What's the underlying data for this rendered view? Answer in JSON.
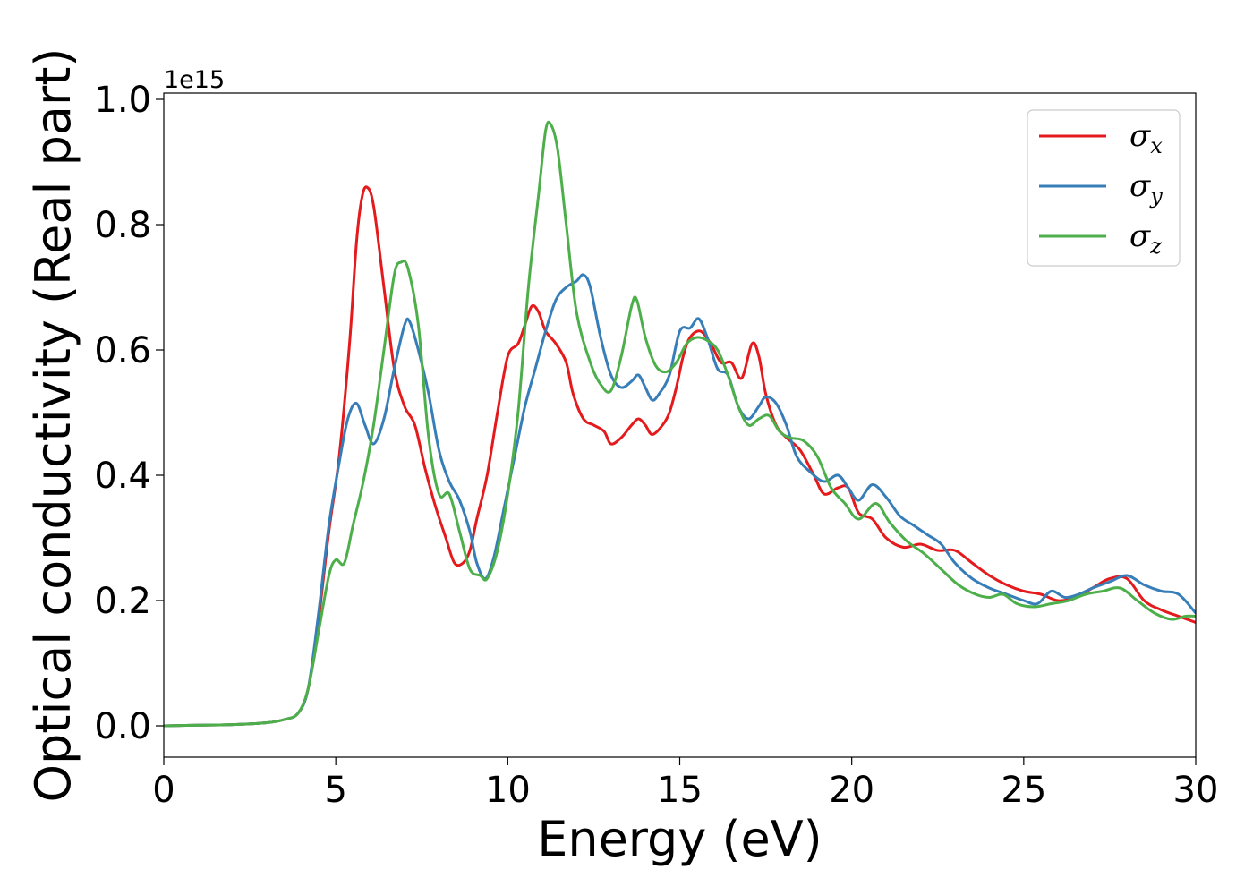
{
  "chart_data": {
    "type": "line",
    "title": "",
    "xlabel": "Energy (eV)",
    "ylabel": "Optical conductivity (Real part)",
    "y_offset_label": "1e15",
    "xlim": [
      0,
      30
    ],
    "ylim": [
      -0.05,
      1.01
    ],
    "x_ticks": [
      0,
      5,
      10,
      15,
      20,
      25,
      30
    ],
    "x_tick_labels": [
      "0",
      "5",
      "10",
      "15",
      "20",
      "25",
      "30"
    ],
    "y_ticks": [
      0.0,
      0.2,
      0.4,
      0.6,
      0.8,
      1.0
    ],
    "y_tick_labels": [
      "0.0",
      "0.2",
      "0.4",
      "0.6",
      "0.8",
      "1.0"
    ],
    "grid": false,
    "legend_position": "top-right",
    "series": [
      {
        "name": "σx",
        "legend_symbol": "σ",
        "legend_subscript": "x",
        "color": "#e41a1c",
        "points": [
          [
            0,
            0.0
          ],
          [
            1,
            0.001
          ],
          [
            2,
            0.002
          ],
          [
            3,
            0.005
          ],
          [
            3.5,
            0.01
          ],
          [
            3.9,
            0.02
          ],
          [
            4.2,
            0.06
          ],
          [
            4.5,
            0.17
          ],
          [
            4.8,
            0.31
          ],
          [
            5.1,
            0.43
          ],
          [
            5.4,
            0.61
          ],
          [
            5.6,
            0.77
          ],
          [
            5.75,
            0.84
          ],
          [
            5.9,
            0.86
          ],
          [
            6.1,
            0.83
          ],
          [
            6.4,
            0.7
          ],
          [
            6.7,
            0.57
          ],
          [
            7.0,
            0.51
          ],
          [
            7.3,
            0.48
          ],
          [
            7.6,
            0.41
          ],
          [
            7.9,
            0.35
          ],
          [
            8.2,
            0.3
          ],
          [
            8.45,
            0.26
          ],
          [
            8.7,
            0.26
          ],
          [
            8.9,
            0.28
          ],
          [
            9.1,
            0.33
          ],
          [
            9.4,
            0.4
          ],
          [
            9.7,
            0.5
          ],
          [
            10.0,
            0.59
          ],
          [
            10.3,
            0.61
          ],
          [
            10.5,
            0.64
          ],
          [
            10.7,
            0.67
          ],
          [
            10.9,
            0.66
          ],
          [
            11.1,
            0.63
          ],
          [
            11.4,
            0.61
          ],
          [
            11.7,
            0.58
          ],
          [
            11.9,
            0.53
          ],
          [
            12.2,
            0.49
          ],
          [
            12.5,
            0.48
          ],
          [
            12.8,
            0.47
          ],
          [
            13.0,
            0.45
          ],
          [
            13.3,
            0.46
          ],
          [
            13.6,
            0.48
          ],
          [
            13.8,
            0.49
          ],
          [
            14.0,
            0.48
          ],
          [
            14.2,
            0.465
          ],
          [
            14.5,
            0.48
          ],
          [
            14.7,
            0.5
          ],
          [
            14.9,
            0.54
          ],
          [
            15.1,
            0.59
          ],
          [
            15.3,
            0.62
          ],
          [
            15.6,
            0.63
          ],
          [
            15.9,
            0.61
          ],
          [
            16.2,
            0.58
          ],
          [
            16.5,
            0.58
          ],
          [
            16.8,
            0.555
          ],
          [
            17.1,
            0.61
          ],
          [
            17.3,
            0.59
          ],
          [
            17.5,
            0.53
          ],
          [
            17.8,
            0.48
          ],
          [
            18.1,
            0.46
          ],
          [
            18.5,
            0.44
          ],
          [
            18.9,
            0.4
          ],
          [
            19.2,
            0.37
          ],
          [
            19.6,
            0.38
          ],
          [
            19.9,
            0.38
          ],
          [
            20.2,
            0.34
          ],
          [
            20.6,
            0.33
          ],
          [
            21.0,
            0.3
          ],
          [
            21.5,
            0.285
          ],
          [
            22.0,
            0.29
          ],
          [
            22.5,
            0.28
          ],
          [
            23.0,
            0.28
          ],
          [
            23.5,
            0.26
          ],
          [
            24.0,
            0.24
          ],
          [
            24.5,
            0.225
          ],
          [
            25.0,
            0.215
          ],
          [
            25.5,
            0.21
          ],
          [
            26.0,
            0.2
          ],
          [
            26.5,
            0.205
          ],
          [
            27.0,
            0.22
          ],
          [
            27.5,
            0.235
          ],
          [
            28.0,
            0.235
          ],
          [
            28.5,
            0.2
          ],
          [
            29.0,
            0.185
          ],
          [
            29.5,
            0.175
          ],
          [
            30.0,
            0.165
          ]
        ]
      },
      {
        "name": "σy",
        "legend_symbol": "σ",
        "legend_subscript": "y",
        "color": "#377eb8",
        "points": [
          [
            0,
            0.0
          ],
          [
            1,
            0.001
          ],
          [
            2,
            0.002
          ],
          [
            3,
            0.005
          ],
          [
            3.5,
            0.01
          ],
          [
            3.9,
            0.02
          ],
          [
            4.2,
            0.06
          ],
          [
            4.5,
            0.18
          ],
          [
            4.8,
            0.32
          ],
          [
            5.1,
            0.42
          ],
          [
            5.35,
            0.49
          ],
          [
            5.6,
            0.515
          ],
          [
            5.85,
            0.48
          ],
          [
            6.1,
            0.45
          ],
          [
            6.4,
            0.49
          ],
          [
            6.7,
            0.57
          ],
          [
            7.0,
            0.64
          ],
          [
            7.15,
            0.645
          ],
          [
            7.4,
            0.6
          ],
          [
            7.7,
            0.53
          ],
          [
            8.0,
            0.44
          ],
          [
            8.3,
            0.39
          ],
          [
            8.6,
            0.36
          ],
          [
            8.9,
            0.31
          ],
          [
            9.1,
            0.26
          ],
          [
            9.35,
            0.235
          ],
          [
            9.6,
            0.27
          ],
          [
            9.9,
            0.35
          ],
          [
            10.2,
            0.43
          ],
          [
            10.5,
            0.51
          ],
          [
            10.8,
            0.57
          ],
          [
            11.1,
            0.63
          ],
          [
            11.4,
            0.68
          ],
          [
            11.7,
            0.7
          ],
          [
            12.0,
            0.71
          ],
          [
            12.2,
            0.72
          ],
          [
            12.4,
            0.7
          ],
          [
            12.7,
            0.62
          ],
          [
            13.0,
            0.56
          ],
          [
            13.3,
            0.54
          ],
          [
            13.6,
            0.55
          ],
          [
            13.8,
            0.56
          ],
          [
            14.0,
            0.54
          ],
          [
            14.2,
            0.52
          ],
          [
            14.4,
            0.53
          ],
          [
            14.7,
            0.56
          ],
          [
            15.0,
            0.63
          ],
          [
            15.3,
            0.635
          ],
          [
            15.55,
            0.65
          ],
          [
            15.8,
            0.62
          ],
          [
            16.1,
            0.57
          ],
          [
            16.4,
            0.56
          ],
          [
            16.7,
            0.51
          ],
          [
            17.0,
            0.49
          ],
          [
            17.3,
            0.51
          ],
          [
            17.5,
            0.525
          ],
          [
            17.8,
            0.515
          ],
          [
            18.1,
            0.48
          ],
          [
            18.4,
            0.43
          ],
          [
            18.8,
            0.405
          ],
          [
            19.2,
            0.39
          ],
          [
            19.6,
            0.4
          ],
          [
            19.9,
            0.38
          ],
          [
            20.2,
            0.36
          ],
          [
            20.6,
            0.385
          ],
          [
            21.0,
            0.365
          ],
          [
            21.4,
            0.335
          ],
          [
            21.8,
            0.32
          ],
          [
            22.2,
            0.305
          ],
          [
            22.6,
            0.29
          ],
          [
            23.0,
            0.26
          ],
          [
            23.5,
            0.235
          ],
          [
            24.0,
            0.22
          ],
          [
            24.5,
            0.21
          ],
          [
            25.0,
            0.2
          ],
          [
            25.4,
            0.195
          ],
          [
            25.8,
            0.215
          ],
          [
            26.2,
            0.205
          ],
          [
            26.6,
            0.21
          ],
          [
            27.0,
            0.22
          ],
          [
            27.5,
            0.23
          ],
          [
            28.0,
            0.24
          ],
          [
            28.5,
            0.225
          ],
          [
            29.0,
            0.215
          ],
          [
            29.5,
            0.21
          ],
          [
            30.0,
            0.18
          ]
        ]
      },
      {
        "name": "σz",
        "legend_symbol": "σ",
        "legend_subscript": "z",
        "color": "#4daf4a",
        "points": [
          [
            0,
            0.0
          ],
          [
            1,
            0.001
          ],
          [
            2,
            0.002
          ],
          [
            3,
            0.005
          ],
          [
            3.5,
            0.01
          ],
          [
            3.9,
            0.02
          ],
          [
            4.2,
            0.06
          ],
          [
            4.5,
            0.15
          ],
          [
            4.8,
            0.24
          ],
          [
            5.0,
            0.265
          ],
          [
            5.25,
            0.26
          ],
          [
            5.5,
            0.32
          ],
          [
            5.8,
            0.39
          ],
          [
            6.1,
            0.48
          ],
          [
            6.4,
            0.6
          ],
          [
            6.7,
            0.72
          ],
          [
            6.9,
            0.74
          ],
          [
            7.1,
            0.73
          ],
          [
            7.4,
            0.64
          ],
          [
            7.7,
            0.46
          ],
          [
            8.0,
            0.37
          ],
          [
            8.3,
            0.37
          ],
          [
            8.6,
            0.31
          ],
          [
            8.9,
            0.25
          ],
          [
            9.2,
            0.24
          ],
          [
            9.4,
            0.235
          ],
          [
            9.7,
            0.28
          ],
          [
            10.0,
            0.37
          ],
          [
            10.3,
            0.5
          ],
          [
            10.6,
            0.7
          ],
          [
            10.9,
            0.85
          ],
          [
            11.1,
            0.95
          ],
          [
            11.25,
            0.96
          ],
          [
            11.45,
            0.92
          ],
          [
            11.7,
            0.8
          ],
          [
            12.0,
            0.66
          ],
          [
            12.4,
            0.58
          ],
          [
            12.7,
            0.545
          ],
          [
            13.0,
            0.535
          ],
          [
            13.3,
            0.59
          ],
          [
            13.6,
            0.67
          ],
          [
            13.75,
            0.68
          ],
          [
            14.0,
            0.62
          ],
          [
            14.3,
            0.575
          ],
          [
            14.6,
            0.565
          ],
          [
            14.9,
            0.58
          ],
          [
            15.2,
            0.61
          ],
          [
            15.5,
            0.62
          ],
          [
            15.8,
            0.615
          ],
          [
            16.1,
            0.6
          ],
          [
            16.4,
            0.56
          ],
          [
            16.7,
            0.51
          ],
          [
            17.0,
            0.48
          ],
          [
            17.3,
            0.49
          ],
          [
            17.6,
            0.495
          ],
          [
            17.9,
            0.47
          ],
          [
            18.2,
            0.46
          ],
          [
            18.6,
            0.455
          ],
          [
            19.0,
            0.43
          ],
          [
            19.4,
            0.38
          ],
          [
            19.8,
            0.355
          ],
          [
            20.2,
            0.33
          ],
          [
            20.7,
            0.355
          ],
          [
            21.1,
            0.325
          ],
          [
            21.6,
            0.295
          ],
          [
            22.1,
            0.275
          ],
          [
            22.6,
            0.25
          ],
          [
            23.1,
            0.225
          ],
          [
            23.6,
            0.21
          ],
          [
            24.0,
            0.205
          ],
          [
            24.4,
            0.21
          ],
          [
            24.8,
            0.195
          ],
          [
            25.3,
            0.19
          ],
          [
            25.8,
            0.195
          ],
          [
            26.3,
            0.2
          ],
          [
            26.8,
            0.21
          ],
          [
            27.3,
            0.215
          ],
          [
            27.8,
            0.22
          ],
          [
            28.3,
            0.2
          ],
          [
            28.8,
            0.18
          ],
          [
            29.3,
            0.17
          ],
          [
            29.7,
            0.175
          ],
          [
            30.0,
            0.175
          ]
        ]
      }
    ]
  }
}
